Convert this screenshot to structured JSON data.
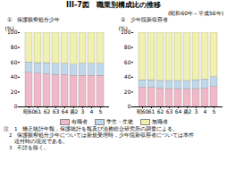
{
  "title": "III-7図　職業別構成比の推移",
  "subtitle": "(昭和60年～平成56年)",
  "annotations": [
    "注　1　矯正統計年報，保護統計を報及び法務総合研究所の調査による。",
    "　2　保護観察処分少年については新規受理時，少年院新収容者については本件",
    "　　送付時の現況である。",
    "　3　不詳を除く。"
  ],
  "chart_data": [
    {
      "type": "bar",
      "title": "①　保護観察処分少年",
      "stacked": true,
      "legend": "bottom",
      "categories": [
        "昭60",
        "61",
        "62",
        "63",
        "64",
        "勇2",
        "3",
        "4",
        "5"
      ],
      "series": [
        {
          "name": "有職者",
          "color": "#f0b8c8",
          "values": [
            46,
            45,
            44,
            43,
            43,
            42,
            42,
            42,
            42
          ]
        },
        {
          "name": "学生・生徒",
          "color": "#c0d8ec",
          "values": [
            14,
            14,
            15,
            15,
            15,
            15,
            16,
            16,
            16
          ]
        },
        {
          "name": "無職者",
          "color": "#f0f0b0",
          "values": [
            40,
            41,
            41,
            42,
            42,
            43,
            42,
            42,
            42
          ]
        }
      ],
      "ylabel": "(%)",
      "ylim": [
        0,
        100
      ],
      "yticks": [
        0,
        20,
        40,
        60,
        80,
        100
      ]
    },
    {
      "type": "bar",
      "title": "②　少年院新収容者",
      "stacked": true,
      "categories": [
        "昭60",
        "61",
        "62",
        "63",
        "64",
        "勇2",
        "3",
        "4",
        "5"
      ],
      "series": [
        {
          "name": "有職者",
          "color": "#f0b8c8",
          "values": [
            26,
            26,
            25,
            24,
            24,
            24,
            24,
            25,
            27
          ]
        },
        {
          "name": "学生・生徒",
          "color": "#c0d8ec",
          "values": [
            10,
            10,
            10,
            11,
            11,
            11,
            12,
            12,
            13
          ]
        },
        {
          "name": "無職者",
          "color": "#f0f0b0",
          "values": [
            64,
            64,
            65,
            65,
            65,
            65,
            64,
            63,
            60
          ]
        }
      ],
      "ylabel": "(%)",
      "ylim": [
        0,
        100
      ],
      "yticks": [
        0,
        20,
        40,
        60,
        80,
        100
      ]
    }
  ]
}
